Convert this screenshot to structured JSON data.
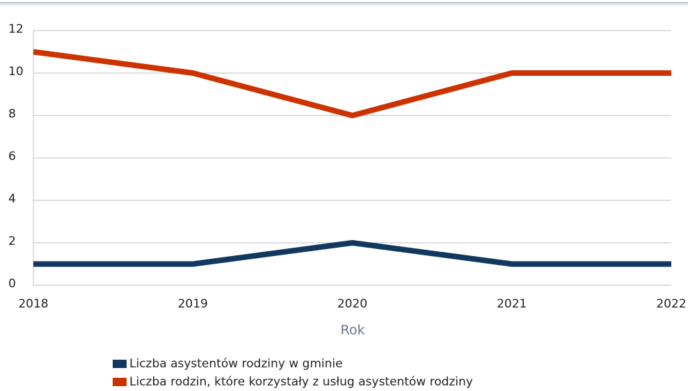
{
  "chart_data": {
    "type": "line",
    "categories": [
      "2018",
      "2019",
      "2020",
      "2021",
      "2022"
    ],
    "series": [
      {
        "name": "Liczba asystentów rodziny w gminie",
        "color": "#12385f",
        "values": [
          1,
          1,
          2,
          1,
          1
        ]
      },
      {
        "name": "Liczba rodzin, które korzystały z usług asystentów rodziny",
        "color": "#cc3300",
        "values": [
          11,
          10,
          8,
          10,
          10
        ]
      }
    ],
    "x_label": "Rok",
    "ylim": [
      0,
      12
    ],
    "yticks": [
      0,
      2,
      4,
      6,
      8,
      10,
      12
    ],
    "grid": true
  }
}
